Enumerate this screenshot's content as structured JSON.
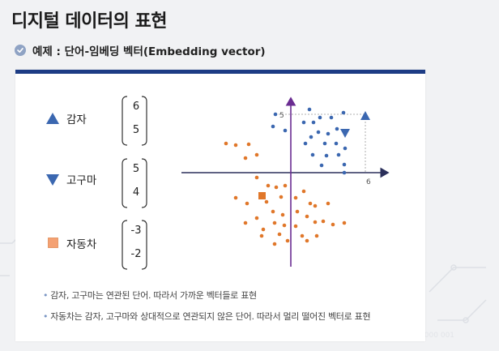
{
  "title": "디지털 데이터의 표현",
  "subtitle": "예제 : 단어-임베딩 벡터(Embedding vector)",
  "items": [
    {
      "label": "감자",
      "icon": "triangle-up-icon",
      "color": "#3b67b0",
      "vector": [
        "6",
        "5"
      ]
    },
    {
      "label": "고구마",
      "icon": "triangle-down-icon",
      "color": "#3b67b0",
      "vector": [
        "5",
        "4"
      ]
    },
    {
      "label": "자동차",
      "icon": "square-icon",
      "color": "#f4a173",
      "vector": [
        "-3",
        "-2"
      ]
    }
  ],
  "plot": {
    "y_tick_label": "5",
    "x_tick_label": "6",
    "blue_color": "#3b67b0",
    "orange_color": "#e0772a",
    "axis_y_color": "#6a2c91",
    "axis_x_color": "#2a2f5a"
  },
  "bullets": [
    "감자, 고구마는 연관된 단어. 따라서 가까운 벡터들로 표현",
    "자동차는 감자, 고구마와 상대적으로 연관되지 않은 단어. 따라서 멀리 떨어진 벡터로 표현"
  ]
}
